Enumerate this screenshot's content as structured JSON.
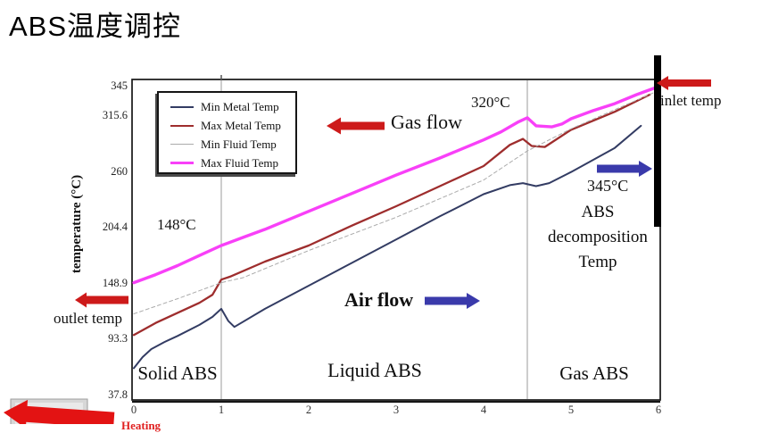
{
  "title": "ABS温度调控",
  "colors": {
    "background": "#ffffff",
    "chart_border": "#161616",
    "grid_line": "#9b9b9b",
    "black_bar": "#000000",
    "red_arrow": "#cd1a1a",
    "blue_arrow": "#3a3aab",
    "big_red_arrow": "#e31313",
    "gray_box_face": "#d7d7d7",
    "gray_box_inner": "#e9e9e9"
  },
  "chart_data": {
    "type": "line",
    "title": "",
    "xlabel": "",
    "ylabel": "temperature (°C)",
    "xlim": [
      0,
      6
    ],
    "ylim": [
      37.8,
      345
    ],
    "grid": false,
    "legend_position": "top-left",
    "x_ticks": [
      {
        "label": "0",
        "value": 0
      },
      {
        "label": "1",
        "value": 1
      },
      {
        "label": "2",
        "value": 2
      },
      {
        "label": "3",
        "value": 3
      },
      {
        "label": "4",
        "value": 4
      },
      {
        "label": "5",
        "value": 5
      },
      {
        "label": "6",
        "value": 6
      }
    ],
    "y_ticks": [
      {
        "label": "345",
        "value": 345
      },
      {
        "label": "315.6",
        "value": 315.6
      },
      {
        "label": "260",
        "value": 260
      },
      {
        "label": "204.4",
        "value": 204.4
      },
      {
        "label": "148.9",
        "value": 148.9
      },
      {
        "label": "93.3",
        "value": 93.3
      },
      {
        "label": "37.8",
        "value": 37.8
      }
    ],
    "separators": [
      1,
      4.5
    ],
    "series": [
      {
        "name": "Min Metal Temp",
        "color": "#333c63",
        "stroke_width": 2,
        "dash": null,
        "points": [
          [
            0,
            65
          ],
          [
            0.1,
            76
          ],
          [
            0.2,
            84
          ],
          [
            0.35,
            91
          ],
          [
            0.5,
            97
          ],
          [
            0.75,
            108
          ],
          [
            0.9,
            116
          ],
          [
            1,
            124
          ],
          [
            1.08,
            112
          ],
          [
            1.15,
            106
          ],
          [
            1.5,
            124
          ],
          [
            2,
            147
          ],
          [
            2.5,
            170
          ],
          [
            3,
            193
          ],
          [
            3.5,
            216
          ],
          [
            4,
            238
          ],
          [
            4.3,
            247
          ],
          [
            4.45,
            249
          ],
          [
            4.6,
            246
          ],
          [
            4.75,
            249
          ],
          [
            5,
            260
          ],
          [
            5.5,
            284
          ],
          [
            5.8,
            306
          ]
        ]
      },
      {
        "name": "Max Metal Temp",
        "color": "#9e2d2d",
        "stroke_width": 2.3,
        "dash": null,
        "points": [
          [
            0,
            98
          ],
          [
            0.25,
            110
          ],
          [
            0.5,
            120
          ],
          [
            0.75,
            130
          ],
          [
            0.9,
            138
          ],
          [
            1,
            153
          ],
          [
            1.1,
            156
          ],
          [
            1.5,
            171
          ],
          [
            2,
            187
          ],
          [
            2.5,
            207
          ],
          [
            3,
            226
          ],
          [
            3.5,
            246
          ],
          [
            4,
            266
          ],
          [
            4.3,
            287
          ],
          [
            4.45,
            293
          ],
          [
            4.55,
            286
          ],
          [
            4.7,
            285
          ],
          [
            5,
            302
          ],
          [
            5.5,
            320
          ],
          [
            5.9,
            337
          ]
        ]
      },
      {
        "name": "Min Fluid Temp",
        "color": "#ababab",
        "stroke_width": 1,
        "dash": "4 3",
        "points": [
          [
            0,
            119
          ],
          [
            0.5,
            134
          ],
          [
            1,
            150
          ],
          [
            1.25,
            155
          ],
          [
            2,
            182
          ],
          [
            3,
            215
          ],
          [
            4,
            252
          ],
          [
            4.5,
            281
          ],
          [
            5,
            303
          ],
          [
            5.5,
            322
          ],
          [
            6,
            341
          ]
        ]
      },
      {
        "name": "Max Fluid Temp",
        "color": "#f840f8",
        "stroke_width": 3.4,
        "dash": null,
        "points": [
          [
            0,
            150
          ],
          [
            0.25,
            158
          ],
          [
            0.5,
            167
          ],
          [
            0.75,
            177
          ],
          [
            1,
            187
          ],
          [
            1.25,
            195
          ],
          [
            1.5,
            203
          ],
          [
            2,
            221
          ],
          [
            2.5,
            239
          ],
          [
            3,
            257
          ],
          [
            3.5,
            274
          ],
          [
            4,
            292
          ],
          [
            4.2,
            300
          ],
          [
            4.4,
            310
          ],
          [
            4.5,
            314
          ],
          [
            4.6,
            306
          ],
          [
            4.78,
            305
          ],
          [
            4.9,
            308
          ],
          [
            5,
            313
          ],
          [
            5.25,
            321
          ],
          [
            5.5,
            328
          ],
          [
            5.75,
            337
          ],
          [
            6,
            345
          ]
        ]
      }
    ],
    "regions": [
      {
        "label": "Solid ABS",
        "from": 0,
        "to": 1
      },
      {
        "label": "Liquid ABS",
        "from": 1,
        "to": 4.5
      },
      {
        "label": "Gas ABS",
        "from": 4.5,
        "to": 6
      }
    ],
    "annotations": {
      "t148": "148°C",
      "t320": "320°C",
      "t345": "345°C",
      "gas_flow": "Gas flow",
      "air_flow": "Air flow",
      "inlet": "inlet temp",
      "outlet": "outlet temp",
      "abs_lines": [
        "ABS",
        "decomposition",
        "Temp"
      ]
    },
    "decor_arrows": [
      {
        "name": "gas-flow-arrow",
        "direction": "left",
        "tip": [
          366,
          141
        ],
        "tail": 431,
        "shaft": 4.5,
        "head": [
          16,
          9.5
        ],
        "color": "#cd1a1a",
        "rotate": 0
      },
      {
        "name": "inlet-temp-arrow",
        "direction": "left",
        "tip": [
          736,
          93
        ],
        "tail": 797,
        "shaft": 4,
        "head": [
          13,
          8
        ],
        "color": "#cd1a1a",
        "rotate": 0
      },
      {
        "name": "outlet-temp-arrow",
        "direction": "left",
        "tip": [
          84,
          336
        ],
        "tail": 144,
        "shaft": 4.5,
        "head": [
          13,
          8.5
        ],
        "color": "#cd1a1a",
        "rotate": 0
      },
      {
        "name": "decomp-arrow",
        "direction": "right",
        "tip": [
          731,
          189
        ],
        "tail": 669,
        "shaft": 4.5,
        "head": [
          15,
          9
        ],
        "color": "#3a3aab",
        "rotate": 0
      },
      {
        "name": "air-flow-arrow",
        "direction": "right",
        "tip": [
          538,
          337
        ],
        "tail": 476,
        "shaft": 4.5,
        "head": [
          15,
          9
        ],
        "color": "#3a3aab",
        "rotate": 0
      },
      {
        "name": "bottom-left-arrow",
        "direction": "left",
        "tip": [
          4,
          462
        ],
        "tail": 128,
        "shaft": 9,
        "head": [
          26,
          16
        ],
        "color": "#e31313",
        "rotate": 4
      }
    ]
  },
  "footer": {
    "cut_label": "Heating"
  }
}
